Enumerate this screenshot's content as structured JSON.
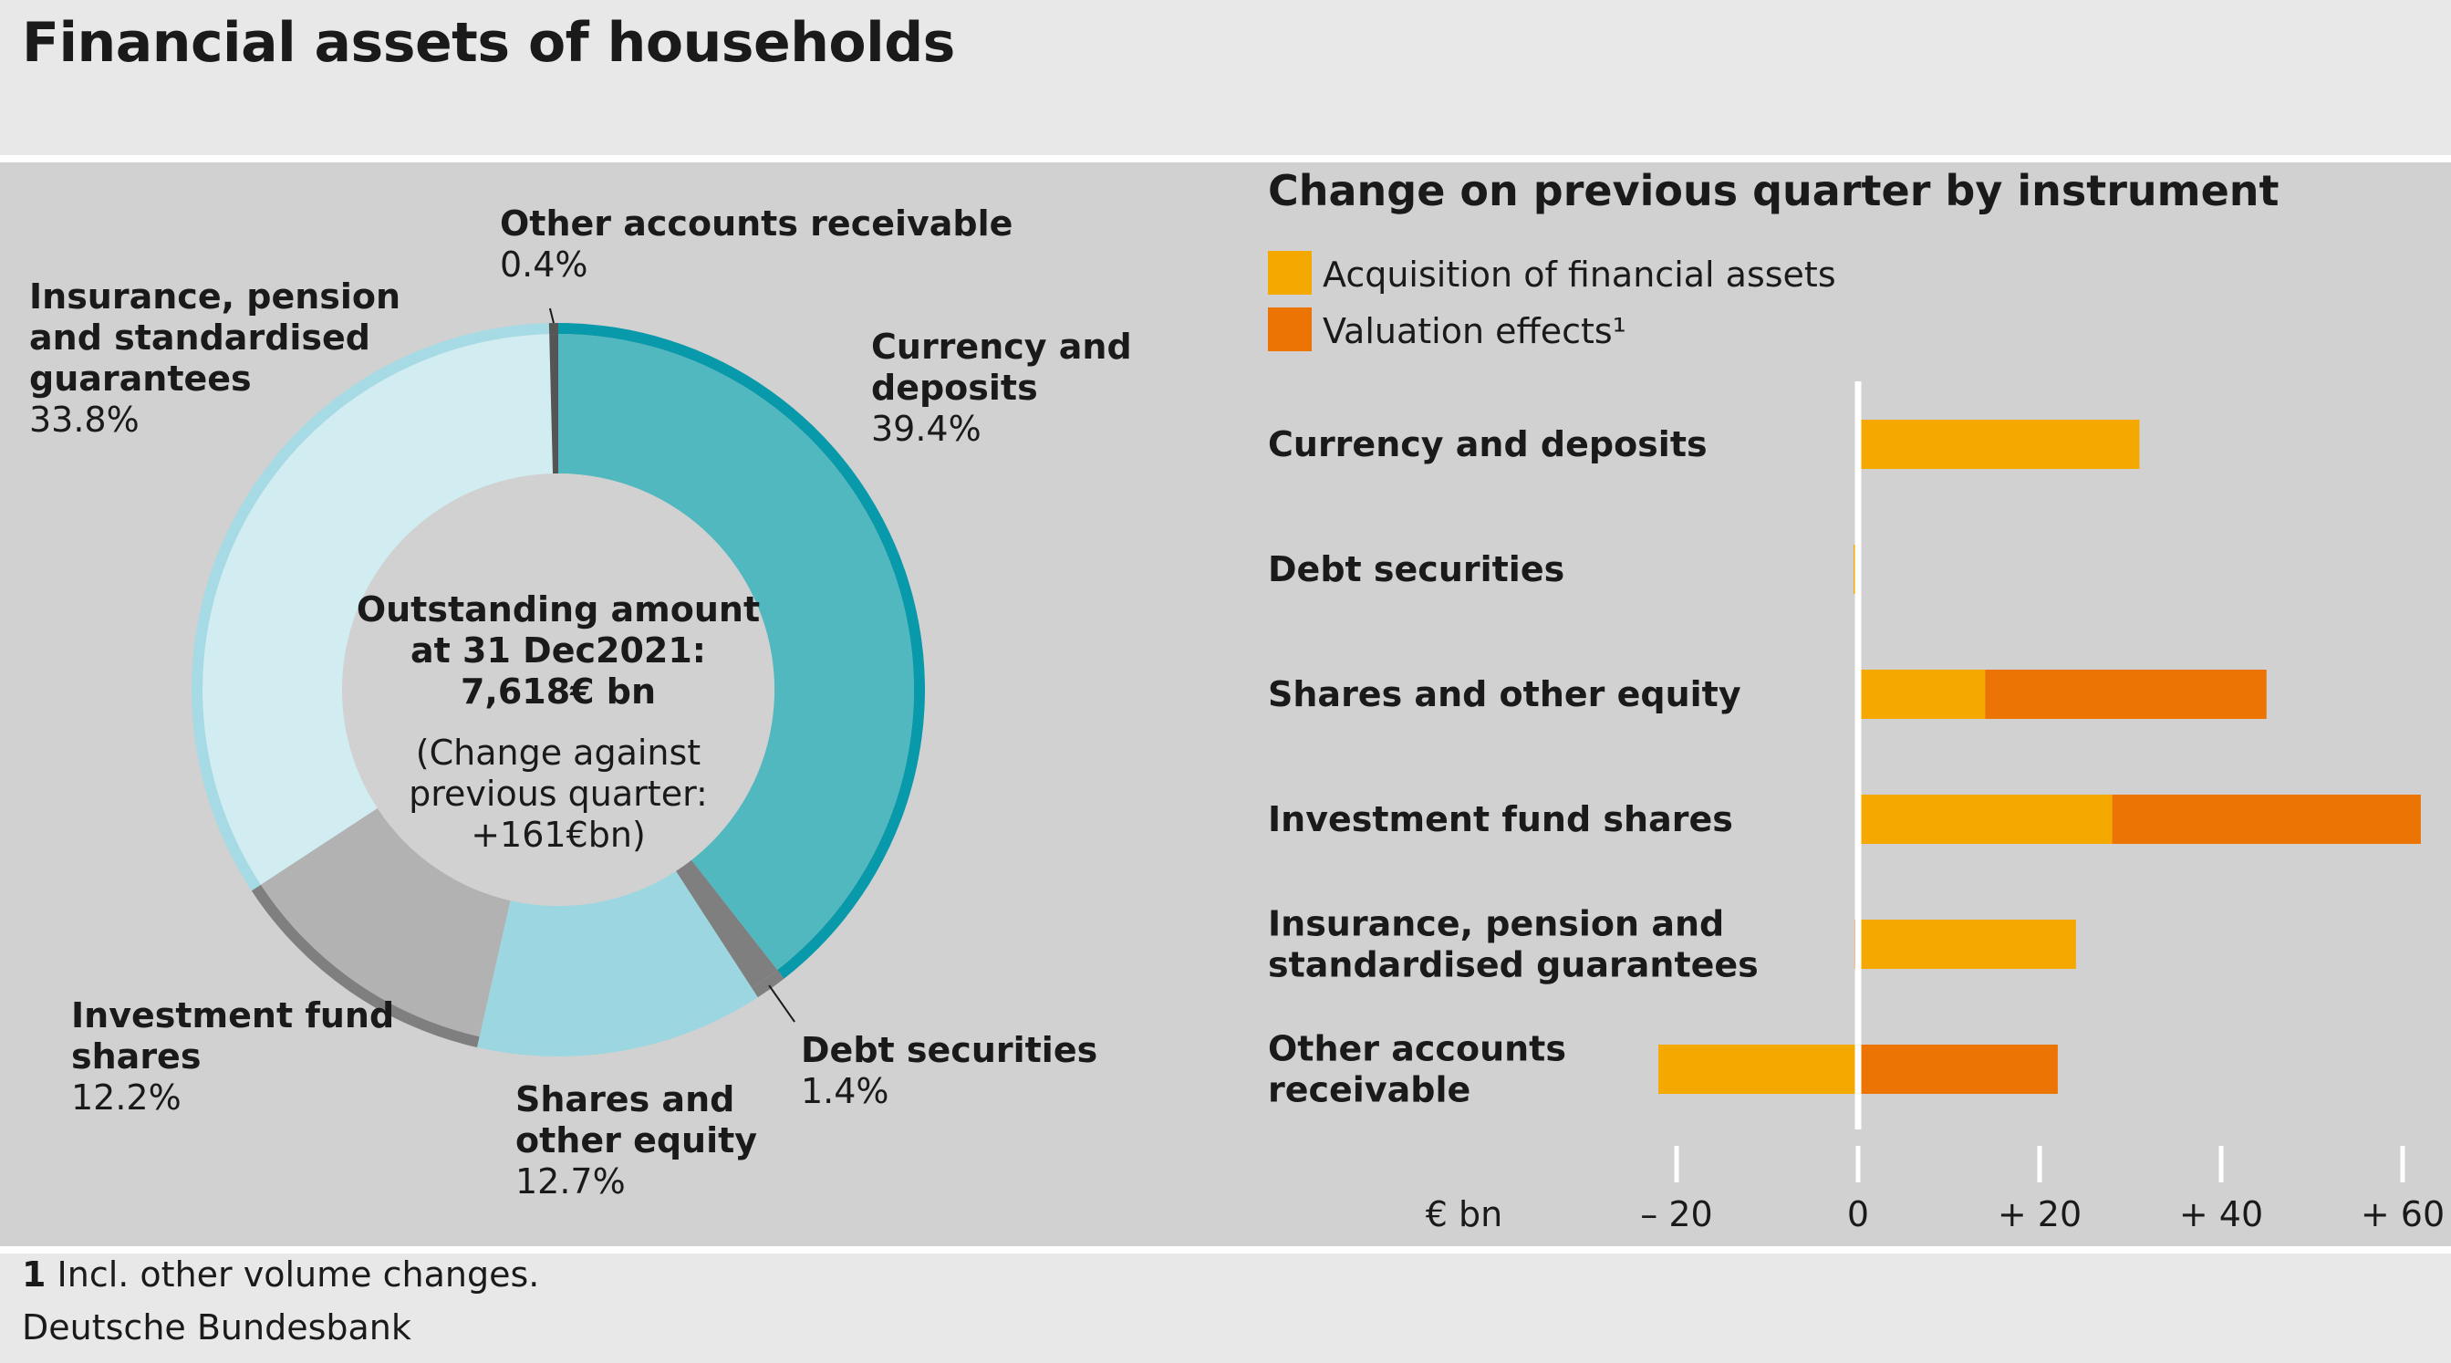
{
  "title": "Financial assets of households",
  "footnote": {
    "number": "1",
    "text": " Incl. other volume changes."
  },
  "source": "Deutsche Bundesbank",
  "colors": {
    "background": "#e8e8e8",
    "panel": "#d1d1d1",
    "acquisition": "#f5a800",
    "valuation": "#ec7405",
    "currency": "#52b8c0",
    "currency_ring": "#0899aa",
    "debt": "#7f7f7f",
    "shares": "#9cd6e0",
    "investment": "#b3b2b2",
    "investment_ring": "#7f7f7f",
    "insurance": "#d1edf2",
    "insurance_ring": "#a6dbe5",
    "other": "#555555"
  },
  "donut_center": {
    "line1": "Outstanding amount",
    "line2": "at 31 Dec2021:",
    "line3": "7,618€ bn",
    "line4": "(Change against",
    "line5": "previous quarter:",
    "line6": "+161€bn)"
  },
  "bar_panel": {
    "title": "Change on previous quarter by instrument",
    "legend": [
      {
        "label": "Acquisition of financial assets",
        "color": "#f5a800"
      },
      {
        "label": "Valuation effects¹",
        "color": "#ec7405"
      }
    ],
    "unit_label": "€ bn",
    "tick_labels": [
      "– 20",
      "0",
      "+ 20",
      "+ 40",
      "+ 60"
    ]
  },
  "chart_data": [
    {
      "type": "pie",
      "subtype": "donut",
      "slices": [
        {
          "label": "Currency and deposits",
          "label_lines": [
            "Currency and",
            "deposits"
          ],
          "value": 39.4,
          "value_text": "39.4%"
        },
        {
          "label": "Debt securities",
          "label_lines": [
            "Debt securities"
          ],
          "value": 1.4,
          "value_text": "1.4%"
        },
        {
          "label": "Shares and other equity",
          "label_lines": [
            "Shares and",
            "other equity"
          ],
          "value": 12.7,
          "value_text": "12.7%"
        },
        {
          "label": "Investment fund shares",
          "label_lines": [
            "Investment fund",
            "shares"
          ],
          "value": 12.2,
          "value_text": "12.2%"
        },
        {
          "label": "Insurance, pension and standardised guarantees",
          "label_lines": [
            "Insurance, pension",
            "and standardised",
            "guarantees"
          ],
          "value": 33.8,
          "value_text": "33.8%"
        },
        {
          "label": "Other accounts receivable",
          "label_lines": [
            "Other accounts receivable"
          ],
          "value": 0.4,
          "value_text": "0.4%"
        }
      ],
      "unit": "%"
    },
    {
      "type": "bar",
      "orientation": "horizontal",
      "stacked": true,
      "categories": [
        [
          "Currency and deposits"
        ],
        [
          "Debt securities"
        ],
        [
          "Shares and other equity"
        ],
        [
          "Investment fund shares"
        ],
        [
          "Insurance, pension and",
          "standardised guarantees"
        ],
        [
          "Other accounts",
          "receivable"
        ]
      ],
      "series": [
        {
          "name": "Acquisition of financial assets",
          "values": [
            31,
            -0.5,
            14,
            28,
            24,
            -22
          ]
        },
        {
          "name": "Valuation effects¹",
          "values": [
            0,
            0,
            31,
            34,
            -0.4,
            22
          ]
        }
      ],
      "xlabel": "€ bn",
      "xlim": [
        -20,
        60
      ],
      "xticks": [
        -20,
        0,
        20,
        40,
        60
      ],
      "grid": false
    }
  ]
}
